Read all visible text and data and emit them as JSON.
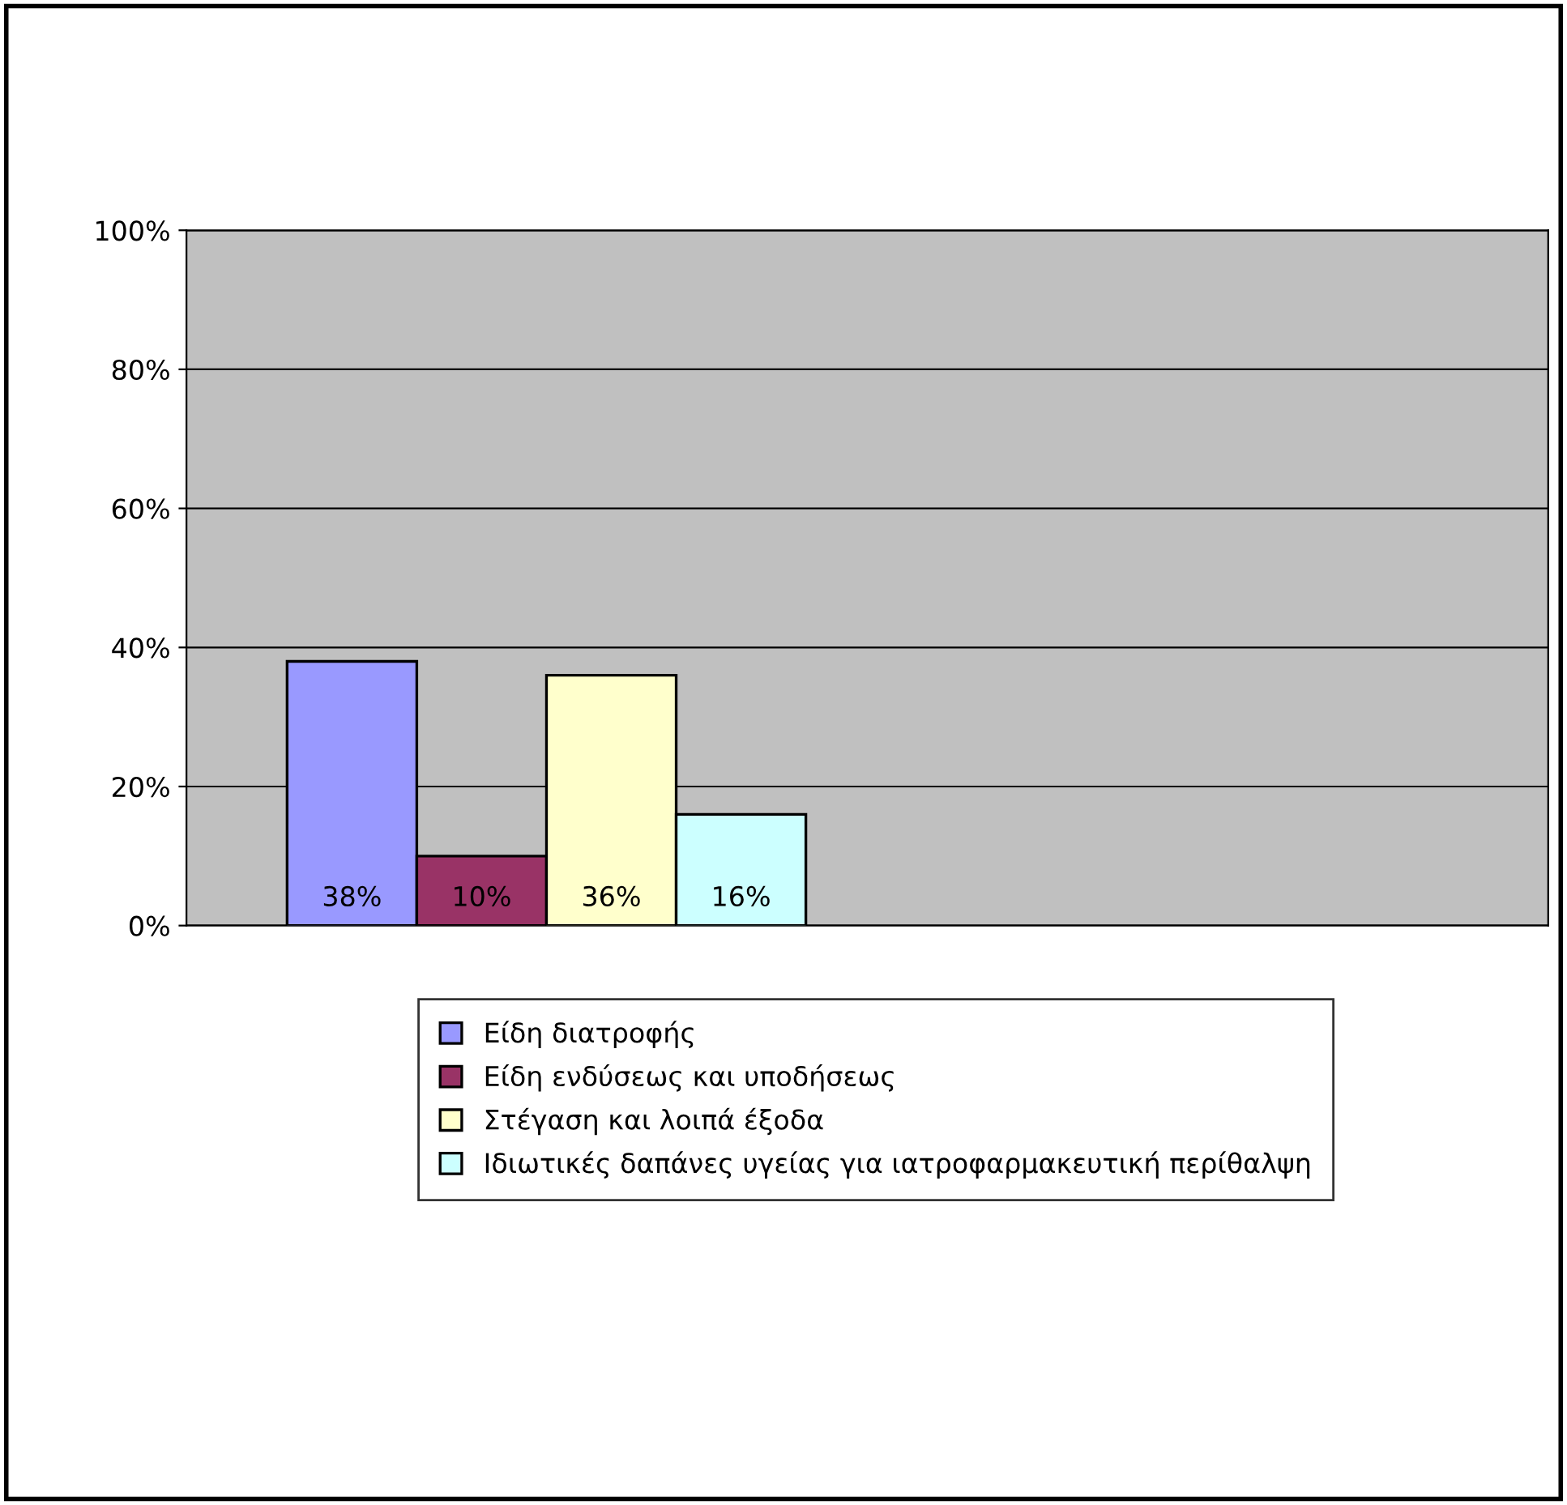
{
  "chart_data": {
    "type": "bar",
    "categories": [
      null
    ],
    "series": [
      {
        "name": "Είδη διατροφής",
        "color": "#9999ff",
        "values": [
          38
        ],
        "value_labels": [
          "38%"
        ]
      },
      {
        "name": "Είδη ενδύσεως και υποδήσεως",
        "color": "#993366",
        "values": [
          10
        ],
        "value_labels": [
          "10%"
        ]
      },
      {
        "name": "Στέγαση και λοιπά έξοδα",
        "color": "#ffffcc",
        "values": [
          36
        ],
        "value_labels": [
          "36%"
        ]
      },
      {
        "name": "Ιδιωτικές δαπάνες υγείας για ιατροφαρμακευτική περίθαλψη",
        "color": "#ccffff",
        "values": [
          16
        ],
        "value_labels": [
          "16%"
        ]
      }
    ],
    "ylim": [
      0,
      100
    ],
    "yticks": [
      {
        "value": 0,
        "label": "0%"
      },
      {
        "value": 20,
        "label": "20%"
      },
      {
        "value": 40,
        "label": "40%"
      },
      {
        "value": 60,
        "label": "60%"
      },
      {
        "value": 80,
        "label": "80%"
      },
      {
        "value": 100,
        "label": "100%"
      }
    ],
    "grid": "y",
    "legend": "bottom"
  }
}
